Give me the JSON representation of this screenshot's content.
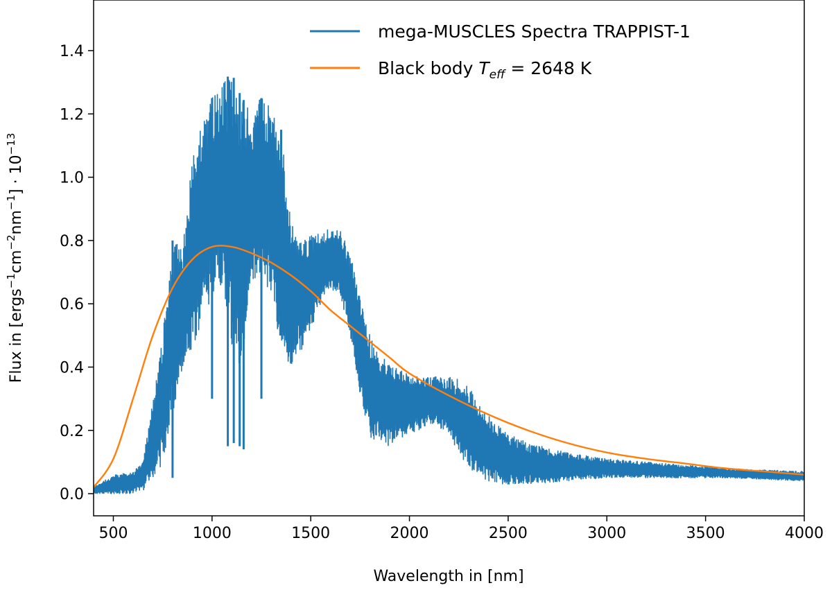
{
  "chart_data": {
    "type": "line",
    "title": "",
    "xlabel": "Wavelength in [nm]",
    "ylabel_parts": {
      "flux_in": "Flux in [ergs",
      "exp1": "−1",
      "cm": "cm",
      "exp2": "−2",
      "nm": "nm",
      "exp3": "−1",
      "close": "] · 10",
      "exp4": "−13"
    },
    "xlim": [
      400,
      4000
    ],
    "ylim": [
      -0.07,
      1.56
    ],
    "x_ticks": [
      500,
      1000,
      1500,
      2000,
      2500,
      3000,
      3500,
      4000
    ],
    "y_ticks": [
      0.0,
      0.2,
      0.4,
      0.6,
      0.8,
      1.0,
      1.2,
      1.4
    ],
    "x_tick_labels": [
      "500",
      "1000",
      "1500",
      "2000",
      "2500",
      "3000",
      "3500",
      "4000"
    ],
    "y_tick_labels": [
      "0.0",
      "0.2",
      "0.4",
      "0.6",
      "0.8",
      "1.0",
      "1.2",
      "1.4"
    ],
    "grid": false,
    "legend_position": "top-right",
    "series": [
      {
        "name": "mega-MUSCLES Spectra TRAPPIST-1",
        "color": "#1f77b4",
        "style": "noisy-spectrum",
        "envelope": {
          "x": [
            400,
            500,
            600,
            650,
            700,
            750,
            800,
            850,
            900,
            950,
            1000,
            1050,
            1100,
            1150,
            1200,
            1250,
            1300,
            1350,
            1400,
            1450,
            1500,
            1550,
            1600,
            1650,
            1700,
            1750,
            1800,
            1850,
            1900,
            1950,
            2000,
            2050,
            2100,
            2150,
            2200,
            2250,
            2300,
            2350,
            2400,
            2450,
            2500,
            2600,
            2800,
            3000,
            3200,
            3400,
            3600,
            3800,
            4000
          ],
          "upper": [
            0.02,
            0.06,
            0.07,
            0.1,
            0.3,
            0.5,
            0.8,
            0.78,
            1.05,
            1.18,
            1.25,
            1.3,
            1.33,
            1.25,
            1.22,
            1.25,
            1.22,
            1.15,
            0.85,
            0.82,
            0.82,
            0.83,
            0.84,
            0.83,
            0.76,
            0.62,
            0.5,
            0.44,
            0.41,
            0.39,
            0.38,
            0.37,
            0.37,
            0.37,
            0.37,
            0.36,
            0.34,
            0.29,
            0.25,
            0.22,
            0.19,
            0.16,
            0.13,
            0.11,
            0.1,
            0.09,
            0.08,
            0.075,
            0.07
          ],
          "lower": [
            0.0,
            0.0,
            0.0,
            0.01,
            0.04,
            0.1,
            0.25,
            0.4,
            0.45,
            0.55,
            0.62,
            0.65,
            0.45,
            0.4,
            0.65,
            0.7,
            0.62,
            0.45,
            0.4,
            0.45,
            0.52,
            0.6,
            0.65,
            0.62,
            0.5,
            0.3,
            0.18,
            0.16,
            0.15,
            0.17,
            0.19,
            0.2,
            0.22,
            0.21,
            0.18,
            0.13,
            0.08,
            0.05,
            0.04,
            0.03,
            0.03,
            0.03,
            0.04,
            0.05,
            0.05,
            0.05,
            0.05,
            0.045,
            0.04
          ]
        },
        "absorption_dips": [
          {
            "x": 800,
            "y": 0.05
          },
          {
            "x": 1000,
            "y": 0.3
          },
          {
            "x": 1080,
            "y": 0.15
          },
          {
            "x": 1110,
            "y": 0.16
          },
          {
            "x": 1140,
            "y": 0.15
          },
          {
            "x": 1160,
            "y": 0.14
          },
          {
            "x": 1250,
            "y": 0.3
          },
          {
            "x": 1350,
            "y": 0.5
          }
        ]
      },
      {
        "name": "Black body T_eff = 2648 K",
        "legend_parts": {
          "prefix": "Black body ",
          "symbol": "T",
          "subscript": "eff",
          "suffix": " = 2648 K"
        },
        "color": "#ff7f0e",
        "style": "smooth",
        "x": [
          400,
          500,
          600,
          700,
          800,
          900,
          1000,
          1100,
          1200,
          1300,
          1400,
          1500,
          1600,
          1700,
          1800,
          1900,
          2000,
          2200,
          2400,
          2600,
          2800,
          3000,
          3200,
          3400,
          3600,
          3800,
          4000
        ],
        "values": [
          0.02,
          0.11,
          0.3,
          0.5,
          0.65,
          0.74,
          0.78,
          0.78,
          0.76,
          0.73,
          0.69,
          0.64,
          0.58,
          0.53,
          0.48,
          0.43,
          0.38,
          0.31,
          0.25,
          0.2,
          0.16,
          0.13,
          0.11,
          0.095,
          0.08,
          0.07,
          0.06
        ]
      }
    ]
  }
}
